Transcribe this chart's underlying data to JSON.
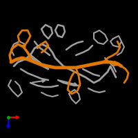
{
  "background_color": "#000000",
  "figure_size": [
    2.0,
    2.0
  ],
  "dpi": 100,
  "title": "",
  "arrow_colors": {
    "x": "#ff0000",
    "y": "#0000ff"
  },
  "chain_color_gray": "#a0a0a0",
  "chain_color_orange": "#e07800"
}
